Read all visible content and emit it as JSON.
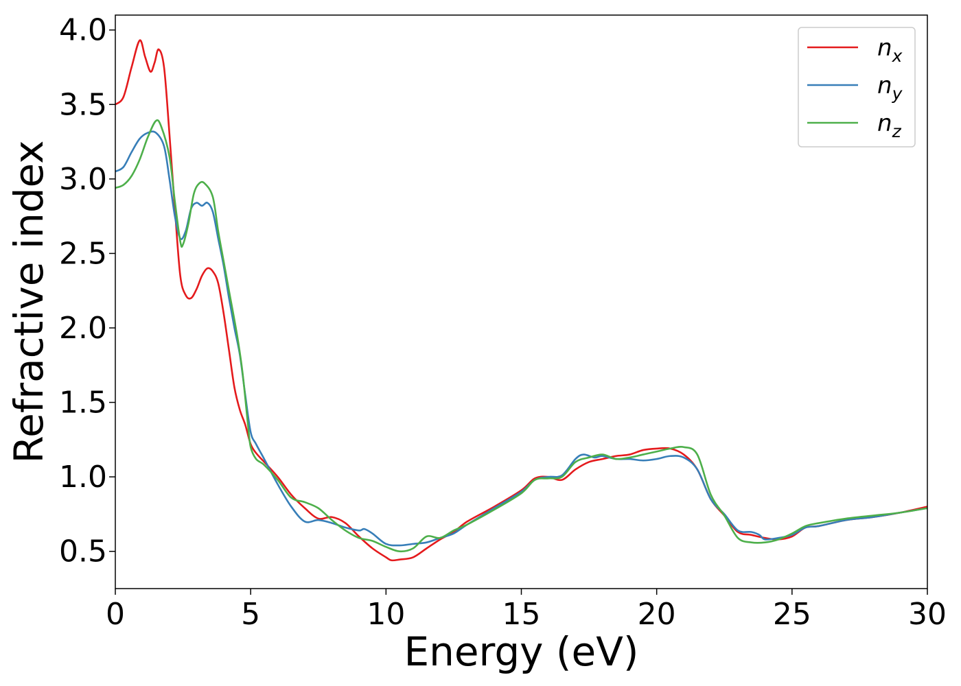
{
  "chart_data": {
    "type": "line",
    "title": "",
    "xlabel": "Energy (eV)",
    "ylabel": "Refractive index",
    "xlim": [
      0,
      30
    ],
    "ylim": [
      0.25,
      4.1
    ],
    "xticks": [
      0,
      5,
      10,
      15,
      20,
      25,
      30
    ],
    "yticks": [
      0.5,
      1.0,
      1.5,
      2.0,
      2.5,
      3.0,
      3.5,
      4.0
    ],
    "xtick_labels": [
      "0",
      "5",
      "10",
      "15",
      "20",
      "25",
      "30"
    ],
    "ytick_labels": [
      "0.5",
      "1.0",
      "1.5",
      "2.0",
      "2.5",
      "3.0",
      "3.5",
      "4.0"
    ],
    "grid": false,
    "legend_position": "top-right",
    "series": [
      {
        "name": "x",
        "color": "#e41a1c",
        "points": [
          [
            0,
            3.5
          ],
          [
            0.3,
            3.55
          ],
          [
            0.6,
            3.75
          ],
          [
            0.9,
            3.93
          ],
          [
            1.1,
            3.82
          ],
          [
            1.3,
            3.72
          ],
          [
            1.45,
            3.78
          ],
          [
            1.6,
            3.87
          ],
          [
            1.8,
            3.75
          ],
          [
            2.0,
            3.3
          ],
          [
            2.2,
            2.8
          ],
          [
            2.4,
            2.35
          ],
          [
            2.6,
            2.22
          ],
          [
            2.8,
            2.2
          ],
          [
            3.0,
            2.26
          ],
          [
            3.2,
            2.35
          ],
          [
            3.4,
            2.4
          ],
          [
            3.6,
            2.38
          ],
          [
            3.8,
            2.3
          ],
          [
            4.0,
            2.1
          ],
          [
            4.2,
            1.85
          ],
          [
            4.4,
            1.6
          ],
          [
            4.6,
            1.45
          ],
          [
            4.8,
            1.35
          ],
          [
            5.0,
            1.22
          ],
          [
            5.2,
            1.16
          ],
          [
            5.5,
            1.1
          ],
          [
            6.0,
            1.0
          ],
          [
            6.5,
            0.88
          ],
          [
            7.0,
            0.79
          ],
          [
            7.5,
            0.72
          ],
          [
            8.0,
            0.73
          ],
          [
            8.5,
            0.69
          ],
          [
            9.0,
            0.6
          ],
          [
            9.5,
            0.52
          ],
          [
            10.0,
            0.46
          ],
          [
            10.2,
            0.44
          ],
          [
            10.5,
            0.445
          ],
          [
            11.0,
            0.46
          ],
          [
            11.5,
            0.52
          ],
          [
            12.0,
            0.58
          ],
          [
            12.5,
            0.63
          ],
          [
            13.0,
            0.7
          ],
          [
            14.0,
            0.8
          ],
          [
            15.0,
            0.91
          ],
          [
            15.5,
            0.99
          ],
          [
            16.0,
            1.0
          ],
          [
            16.5,
            0.98
          ],
          [
            17.0,
            1.05
          ],
          [
            17.5,
            1.1
          ],
          [
            18.0,
            1.12
          ],
          [
            18.5,
            1.14
          ],
          [
            19.0,
            1.15
          ],
          [
            19.5,
            1.18
          ],
          [
            20.0,
            1.19
          ],
          [
            20.5,
            1.19
          ],
          [
            21.0,
            1.15
          ],
          [
            21.5,
            1.05
          ],
          [
            22.0,
            0.85
          ],
          [
            22.5,
            0.74
          ],
          [
            23.0,
            0.63
          ],
          [
            23.5,
            0.61
          ],
          [
            24.0,
            0.59
          ],
          [
            24.5,
            0.58
          ],
          [
            25.0,
            0.6
          ],
          [
            25.5,
            0.66
          ],
          [
            26.0,
            0.67
          ],
          [
            27.0,
            0.71
          ],
          [
            28.0,
            0.73
          ],
          [
            29.0,
            0.76
          ],
          [
            30.0,
            0.8
          ]
        ]
      },
      {
        "name": "y",
        "color": "#377eb8",
        "points": [
          [
            0,
            3.05
          ],
          [
            0.3,
            3.08
          ],
          [
            0.6,
            3.18
          ],
          [
            0.9,
            3.27
          ],
          [
            1.2,
            3.31
          ],
          [
            1.5,
            3.31
          ],
          [
            1.8,
            3.22
          ],
          [
            2.0,
            3.0
          ],
          [
            2.2,
            2.75
          ],
          [
            2.4,
            2.6
          ],
          [
            2.6,
            2.65
          ],
          [
            2.8,
            2.8
          ],
          [
            3.0,
            2.84
          ],
          [
            3.2,
            2.82
          ],
          [
            3.4,
            2.84
          ],
          [
            3.6,
            2.78
          ],
          [
            3.8,
            2.6
          ],
          [
            4.0,
            2.42
          ],
          [
            4.2,
            2.2
          ],
          [
            4.4,
            2.0
          ],
          [
            4.6,
            1.82
          ],
          [
            4.8,
            1.55
          ],
          [
            5.0,
            1.3
          ],
          [
            5.2,
            1.22
          ],
          [
            5.5,
            1.12
          ],
          [
            6.0,
            0.95
          ],
          [
            6.5,
            0.8
          ],
          [
            7.0,
            0.7
          ],
          [
            7.5,
            0.71
          ],
          [
            8.0,
            0.69
          ],
          [
            8.5,
            0.66
          ],
          [
            9.0,
            0.64
          ],
          [
            9.2,
            0.65
          ],
          [
            9.5,
            0.62
          ],
          [
            10.0,
            0.55
          ],
          [
            10.5,
            0.54
          ],
          [
            11.0,
            0.55
          ],
          [
            11.5,
            0.56
          ],
          [
            12.0,
            0.59
          ],
          [
            12.5,
            0.62
          ],
          [
            13.0,
            0.68
          ],
          [
            14.0,
            0.79
          ],
          [
            15.0,
            0.9
          ],
          [
            15.5,
            0.98
          ],
          [
            16.0,
            1.0
          ],
          [
            16.5,
            1.01
          ],
          [
            17.0,
            1.12
          ],
          [
            17.3,
            1.15
          ],
          [
            17.7,
            1.13
          ],
          [
            18.0,
            1.14
          ],
          [
            18.5,
            1.12
          ],
          [
            19.0,
            1.12
          ],
          [
            19.5,
            1.11
          ],
          [
            20.0,
            1.12
          ],
          [
            20.5,
            1.14
          ],
          [
            21.0,
            1.13
          ],
          [
            21.5,
            1.05
          ],
          [
            22.0,
            0.85
          ],
          [
            22.5,
            0.75
          ],
          [
            23.0,
            0.64
          ],
          [
            23.5,
            0.63
          ],
          [
            23.8,
            0.61
          ],
          [
            24.0,
            0.58
          ],
          [
            24.5,
            0.59
          ],
          [
            25.0,
            0.61
          ],
          [
            25.5,
            0.66
          ],
          [
            26.0,
            0.67
          ],
          [
            27.0,
            0.71
          ],
          [
            28.0,
            0.73
          ],
          [
            29.0,
            0.76
          ],
          [
            30.0,
            0.79
          ]
        ]
      },
      {
        "name": "z",
        "color": "#4daf4a",
        "points": [
          [
            0,
            2.94
          ],
          [
            0.3,
            2.96
          ],
          [
            0.6,
            3.02
          ],
          [
            0.9,
            3.13
          ],
          [
            1.2,
            3.28
          ],
          [
            1.5,
            3.39
          ],
          [
            1.7,
            3.35
          ],
          [
            2.0,
            3.15
          ],
          [
            2.2,
            2.85
          ],
          [
            2.4,
            2.58
          ],
          [
            2.5,
            2.56
          ],
          [
            2.7,
            2.7
          ],
          [
            2.9,
            2.9
          ],
          [
            3.1,
            2.97
          ],
          [
            3.3,
            2.97
          ],
          [
            3.6,
            2.88
          ],
          [
            3.8,
            2.65
          ],
          [
            4.0,
            2.45
          ],
          [
            4.2,
            2.25
          ],
          [
            4.5,
            1.95
          ],
          [
            4.7,
            1.7
          ],
          [
            4.9,
            1.35
          ],
          [
            5.0,
            1.2
          ],
          [
            5.2,
            1.12
          ],
          [
            5.5,
            1.08
          ],
          [
            6.0,
            0.98
          ],
          [
            6.5,
            0.86
          ],
          [
            7.0,
            0.83
          ],
          [
            7.5,
            0.79
          ],
          [
            8.0,
            0.71
          ],
          [
            8.5,
            0.64
          ],
          [
            9.0,
            0.59
          ],
          [
            9.5,
            0.57
          ],
          [
            10.0,
            0.53
          ],
          [
            10.5,
            0.5
          ],
          [
            11.0,
            0.52
          ],
          [
            11.5,
            0.6
          ],
          [
            12.0,
            0.59
          ],
          [
            12.5,
            0.64
          ],
          [
            13.0,
            0.68
          ],
          [
            14.0,
            0.78
          ],
          [
            15.0,
            0.89
          ],
          [
            15.5,
            0.98
          ],
          [
            16.0,
            0.99
          ],
          [
            16.5,
            1.0
          ],
          [
            17.0,
            1.1
          ],
          [
            17.5,
            1.13
          ],
          [
            18.0,
            1.15
          ],
          [
            18.5,
            1.12
          ],
          [
            19.0,
            1.13
          ],
          [
            19.5,
            1.15
          ],
          [
            20.0,
            1.17
          ],
          [
            20.5,
            1.19
          ],
          [
            21.0,
            1.2
          ],
          [
            21.5,
            1.15
          ],
          [
            22.0,
            0.88
          ],
          [
            22.5,
            0.74
          ],
          [
            23.0,
            0.59
          ],
          [
            23.5,
            0.56
          ],
          [
            24.0,
            0.56
          ],
          [
            24.5,
            0.58
          ],
          [
            25.0,
            0.62
          ],
          [
            25.5,
            0.67
          ],
          [
            26.0,
            0.69
          ],
          [
            27.0,
            0.72
          ],
          [
            28.0,
            0.74
          ],
          [
            29.0,
            0.76
          ],
          [
            30.0,
            0.79
          ]
        ]
      }
    ]
  }
}
